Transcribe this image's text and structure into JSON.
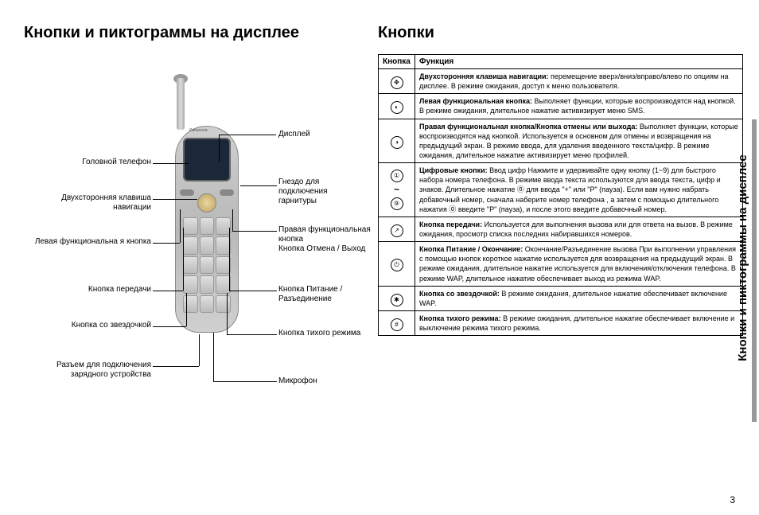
{
  "left": {
    "title": "Кнопки и пиктограммы на дисплее",
    "labels": {
      "earpiece": "Головной телефон",
      "display": "Дисплей",
      "headset_jack": "Гнездо для подключения гарнитуры",
      "nav_key": "Двухсторонняя клавиша навигации",
      "left_soft": "Левая функциональна я кнопка",
      "right_soft": "Правая функциональная кнопка\nКнопка Отмена / Выход",
      "send": "Кнопка передачи",
      "power": "Кнопка Питание / Разъединение",
      "star": "Кнопка со звездочкой",
      "silent": "Кнопка тихого режима",
      "charger": "Разъем для подключения зарядного устройства",
      "mic": "Микрофон"
    },
    "brand": "Panasonic"
  },
  "right": {
    "title": "Кнопки",
    "headers": {
      "col1": "Кнопка",
      "col2": "Функция"
    },
    "rows": [
      {
        "icon": "nav",
        "html": "<b>Двухсторонняя клавиша навигации:</b> перемещение вверх/вниз/вправо/влево по опциям на дисплее. В режиме ожидания, доступ к меню пользователя."
      },
      {
        "icon": "left",
        "html": "<b>Левая функциональная кнопка:</b> Выполняет функции, которые воспроизводятся над кнопкой. В режиме ожидания, длительное нажатие активизирует меню SMS."
      },
      {
        "icon": "right",
        "html": "<b>Правая функциональная кнопка/Кнопка отмены или выхода:</b> Выполняет функции, которые воспроизводятся над кнопкой. Используется в основном для отмены и возвращения на предыдущий экран. В режиме ввода, для удаления введенного текста/цифр. В режиме ожидания, длительное нажатие активизирует меню профилей."
      },
      {
        "icon": "digits",
        "html": "<b>Цифровые кнопки:</b> Ввод цифр Нажмите и удерживайте одну кнопку (1~9) для быстрого набора номера телефона. В режиме ввода текста используются для ввода текста, цифр и знаков. Длительное нажатие ⓪ для ввода \"+\" или \"P\" (пауза). Если вам нужно набрать добавочный номер, сначала наберите номер телефона , а затем с помощью длительного нажатия ⓪ введите \"P\" (пауза), и после этого введите добавочный номер."
      },
      {
        "icon": "send",
        "html": "<b>Кнопка передачи:</b> Используется для выполнения вызова или для ответа на вызов. В режиме ожидания, просмотр списка последних набиравшихся номеров."
      },
      {
        "icon": "power",
        "html": "<b>Кнопка Питание / Окончание:</b> Окончание/Разъединение вызова При выполнении управления с помощью кнопок короткое нажатие используется для возвращения на предыдущий экран. В режиме ожидания, длительное нажатие используется для включения/отключения телефона. В режиме WAP, длительное нажатие обеспечивает выход из режима WAP."
      },
      {
        "icon": "star",
        "html": "<b>Кнопка со звездочкой:</b> В режиме ожидания, длительное нажатие обеспечивает включение WAP."
      },
      {
        "icon": "hash",
        "html": "<b>Кнопка тихого режима:</b> В режиме ожидания, длительное нажатие обеспечивает включение и выключение режима тихого режима."
      }
    ]
  },
  "sidebar": "Кнопки и пиктограммы на дисплее",
  "page_number": "3",
  "colors": {
    "sidebar_bar": "#999999",
    "text": "#000000",
    "border": "#000000"
  }
}
